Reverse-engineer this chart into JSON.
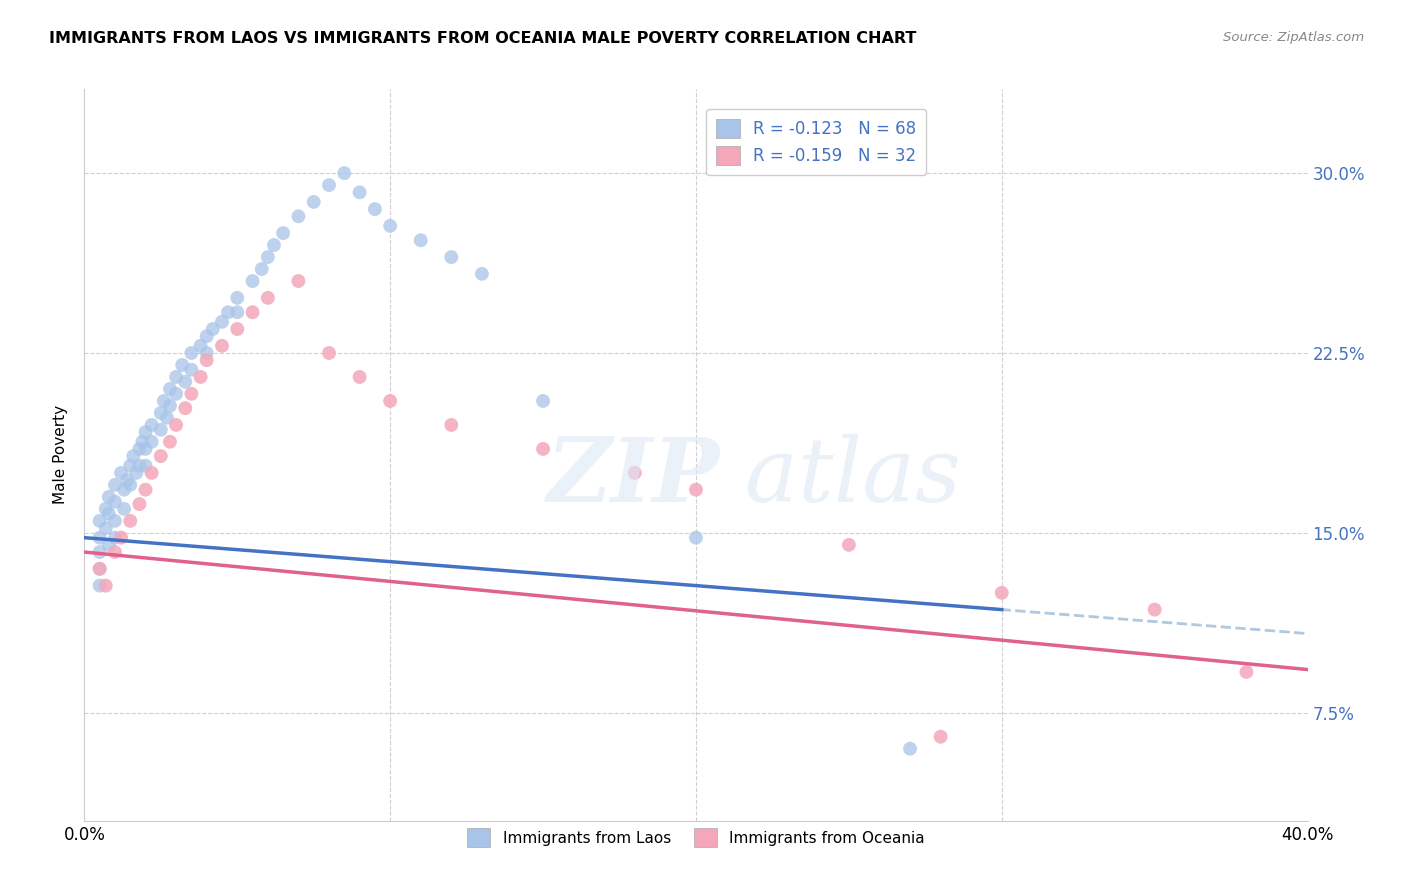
{
  "title": "IMMIGRANTS FROM LAOS VS IMMIGRANTS FROM OCEANIA MALE POVERTY CORRELATION CHART",
  "source": "Source: ZipAtlas.com",
  "ylabel": "Male Poverty",
  "yticks": [
    "7.5%",
    "15.0%",
    "22.5%",
    "30.0%"
  ],
  "ytick_vals": [
    0.075,
    0.15,
    0.225,
    0.3
  ],
  "xlim": [
    0.0,
    0.4
  ],
  "ylim": [
    0.03,
    0.335
  ],
  "legend_r1": "-0.123",
  "legend_n1": "68",
  "legend_r2": "-0.159",
  "legend_n2": "32",
  "color_laos": "#a8c4e8",
  "color_oceania": "#f4a7b9",
  "color_laos_line": "#4472c4",
  "color_oceania_line": "#e06090",
  "color_dashed": "#b0c8e0",
  "laos_x": [
    0.005,
    0.005,
    0.005,
    0.005,
    0.005,
    0.007,
    0.007,
    0.008,
    0.008,
    0.008,
    0.01,
    0.01,
    0.01,
    0.01,
    0.012,
    0.013,
    0.013,
    0.014,
    0.015,
    0.015,
    0.016,
    0.017,
    0.018,
    0.018,
    0.019,
    0.02,
    0.02,
    0.02,
    0.022,
    0.022,
    0.025,
    0.025,
    0.026,
    0.027,
    0.028,
    0.028,
    0.03,
    0.03,
    0.032,
    0.033,
    0.035,
    0.035,
    0.038,
    0.04,
    0.04,
    0.042,
    0.045,
    0.047,
    0.05,
    0.05,
    0.055,
    0.058,
    0.06,
    0.062,
    0.065,
    0.07,
    0.075,
    0.08,
    0.085,
    0.09,
    0.095,
    0.1,
    0.11,
    0.12,
    0.13,
    0.15,
    0.2,
    0.27
  ],
  "laos_y": [
    0.155,
    0.148,
    0.142,
    0.135,
    0.128,
    0.16,
    0.152,
    0.165,
    0.158,
    0.145,
    0.17,
    0.163,
    0.155,
    0.148,
    0.175,
    0.168,
    0.16,
    0.172,
    0.178,
    0.17,
    0.182,
    0.175,
    0.185,
    0.178,
    0.188,
    0.192,
    0.185,
    0.178,
    0.195,
    0.188,
    0.2,
    0.193,
    0.205,
    0.198,
    0.21,
    0.203,
    0.215,
    0.208,
    0.22,
    0.213,
    0.225,
    0.218,
    0.228,
    0.232,
    0.225,
    0.235,
    0.238,
    0.242,
    0.248,
    0.242,
    0.255,
    0.26,
    0.265,
    0.27,
    0.275,
    0.282,
    0.288,
    0.295,
    0.3,
    0.292,
    0.285,
    0.278,
    0.272,
    0.265,
    0.258,
    0.205,
    0.148,
    0.06
  ],
  "oceania_x": [
    0.005,
    0.007,
    0.01,
    0.012,
    0.015,
    0.018,
    0.02,
    0.022,
    0.025,
    0.028,
    0.03,
    0.033,
    0.035,
    0.038,
    0.04,
    0.045,
    0.05,
    0.055,
    0.06,
    0.07,
    0.08,
    0.09,
    0.1,
    0.12,
    0.15,
    0.18,
    0.2,
    0.25,
    0.3,
    0.35,
    0.38,
    0.28
  ],
  "oceania_y": [
    0.135,
    0.128,
    0.142,
    0.148,
    0.155,
    0.162,
    0.168,
    0.175,
    0.182,
    0.188,
    0.195,
    0.202,
    0.208,
    0.215,
    0.222,
    0.228,
    0.235,
    0.242,
    0.248,
    0.255,
    0.225,
    0.215,
    0.205,
    0.195,
    0.185,
    0.175,
    0.168,
    0.145,
    0.125,
    0.118,
    0.092,
    0.065
  ]
}
